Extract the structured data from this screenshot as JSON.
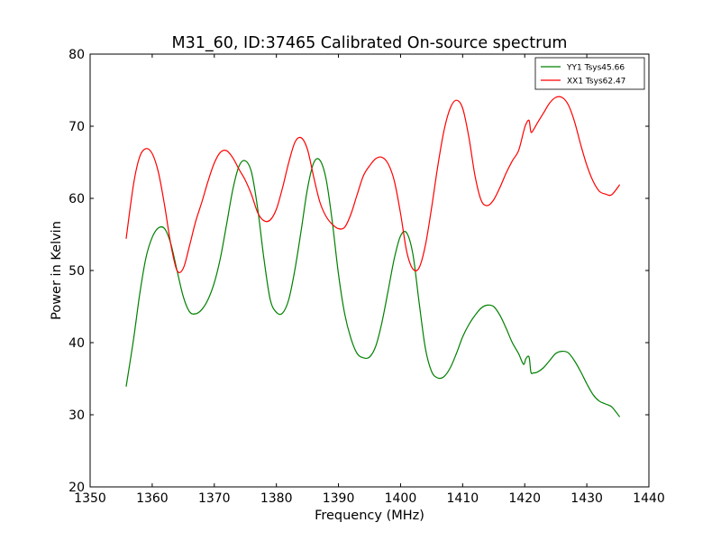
{
  "chart_data": {
    "type": "line",
    "title": "M31_60, ID:37465 Calibrated On-source spectrum",
    "xlabel": "Frequency (MHz)",
    "ylabel": "Power in Kelvin",
    "xlim": [
      1350,
      1440
    ],
    "ylim": [
      20,
      80
    ],
    "xticks": [
      1350,
      1360,
      1370,
      1380,
      1390,
      1400,
      1410,
      1420,
      1430,
      1440
    ],
    "yticks": [
      20,
      30,
      40,
      50,
      60,
      70,
      80
    ],
    "grid": false,
    "legend_position": "top-right",
    "series": [
      {
        "name": "YY1 Tsys45.66",
        "color": "#008000",
        "x": [
          1355.8,
          1357.0,
          1358.0,
          1359.0,
          1360.0,
          1361.0,
          1362.0,
          1363.0,
          1364.0,
          1365.0,
          1366.0,
          1367.0,
          1368.0,
          1369.0,
          1370.0,
          1371.0,
          1372.0,
          1373.0,
          1374.0,
          1375.0,
          1376.0,
          1377.0,
          1378.0,
          1379.0,
          1380.0,
          1381.0,
          1382.0,
          1383.0,
          1384.0,
          1385.0,
          1386.0,
          1387.0,
          1388.0,
          1389.0,
          1390.0,
          1391.0,
          1392.0,
          1393.0,
          1394.0,
          1395.0,
          1396.0,
          1397.0,
          1398.0,
          1399.0,
          1400.0,
          1401.0,
          1402.0,
          1403.0,
          1404.0,
          1405.0,
          1406.0,
          1407.0,
          1408.0,
          1409.0,
          1410.0,
          1411.0,
          1412.0,
          1413.0,
          1414.0,
          1415.0,
          1416.0,
          1417.0,
          1418.0,
          1419.0,
          1419.8,
          1420.2,
          1420.7,
          1421.0,
          1421.4,
          1422.0,
          1423.0,
          1424.0,
          1425.0,
          1426.0,
          1427.0,
          1428.0,
          1429.0,
          1430.0,
          1431.0,
          1432.0,
          1433.0,
          1434.0,
          1435.3
        ],
        "values": [
          33.9,
          40.5,
          46.8,
          51.8,
          54.6,
          55.9,
          55.8,
          53.7,
          50.0,
          46.4,
          44.3,
          44.0,
          44.6,
          46.0,
          48.3,
          51.8,
          56.5,
          61.3,
          64.5,
          65.2,
          63.6,
          58.5,
          51.6,
          46.0,
          44.2,
          44.1,
          46.0,
          50.2,
          55.6,
          61.3,
          64.9,
          65.3,
          62.7,
          56.8,
          49.5,
          44.0,
          40.6,
          38.5,
          37.9,
          38.0,
          39.5,
          42.8,
          47.2,
          51.7,
          54.8,
          55.2,
          52.2,
          45.5,
          39.2,
          36.0,
          35.1,
          35.3,
          36.5,
          38.5,
          40.8,
          42.5,
          43.8,
          44.8,
          45.2,
          45.0,
          43.8,
          42.0,
          40.0,
          38.5,
          37.0,
          37.8,
          38.0,
          35.9,
          35.8,
          35.9,
          36.5,
          37.5,
          38.5,
          38.8,
          38.6,
          37.5,
          36.0,
          34.3,
          32.8,
          31.9,
          31.5,
          31.1,
          29.7
        ]
      },
      {
        "name": "XX1 Tsys62.47",
        "color": "#ff0000",
        "x": [
          1355.8,
          1357.0,
          1358.0,
          1359.0,
          1360.0,
          1361.0,
          1362.0,
          1363.0,
          1364.0,
          1365.0,
          1366.0,
          1367.0,
          1368.0,
          1369.0,
          1370.0,
          1371.0,
          1372.0,
          1373.0,
          1374.0,
          1375.0,
          1376.0,
          1377.0,
          1378.0,
          1379.0,
          1380.0,
          1381.0,
          1382.0,
          1383.0,
          1384.0,
          1385.0,
          1386.0,
          1387.0,
          1388.0,
          1389.0,
          1390.0,
          1391.0,
          1392.0,
          1393.0,
          1394.0,
          1395.0,
          1396.0,
          1397.0,
          1398.0,
          1399.0,
          1400.0,
          1401.0,
          1402.0,
          1403.0,
          1404.0,
          1405.0,
          1406.0,
          1407.0,
          1408.0,
          1409.0,
          1410.0,
          1411.0,
          1412.0,
          1413.0,
          1414.0,
          1415.0,
          1416.0,
          1417.0,
          1418.0,
          1419.0,
          1419.8,
          1420.2,
          1420.7,
          1421.0,
          1421.4,
          1422.0,
          1423.0,
          1424.0,
          1425.0,
          1426.0,
          1427.0,
          1428.0,
          1429.0,
          1430.0,
          1431.0,
          1432.0,
          1433.0,
          1434.0,
          1435.3
        ],
        "values": [
          54.4,
          62.0,
          65.8,
          66.9,
          66.2,
          63.6,
          59.0,
          53.6,
          50.0,
          50.3,
          53.4,
          56.8,
          59.5,
          62.4,
          64.9,
          66.4,
          66.6,
          65.6,
          64.0,
          62.5,
          60.5,
          58.0,
          56.9,
          57.0,
          58.5,
          61.5,
          65.0,
          67.8,
          68.4,
          66.8,
          63.0,
          59.5,
          57.5,
          56.4,
          55.8,
          56.0,
          57.8,
          60.5,
          63.1,
          64.5,
          65.5,
          65.7,
          64.8,
          62.4,
          57.9,
          52.6,
          50.2,
          50.4,
          53.5,
          58.7,
          64.5,
          69.4,
          72.5,
          73.6,
          72.5,
          68.5,
          63.1,
          59.7,
          59.0,
          59.8,
          61.5,
          63.5,
          65.2,
          66.6,
          69.2,
          70.3,
          70.8,
          69.2,
          69.5,
          70.4,
          71.8,
          73.2,
          74.0,
          74.0,
          73.0,
          70.7,
          67.5,
          64.6,
          62.4,
          61.0,
          60.6,
          60.5,
          61.9
        ]
      }
    ]
  }
}
